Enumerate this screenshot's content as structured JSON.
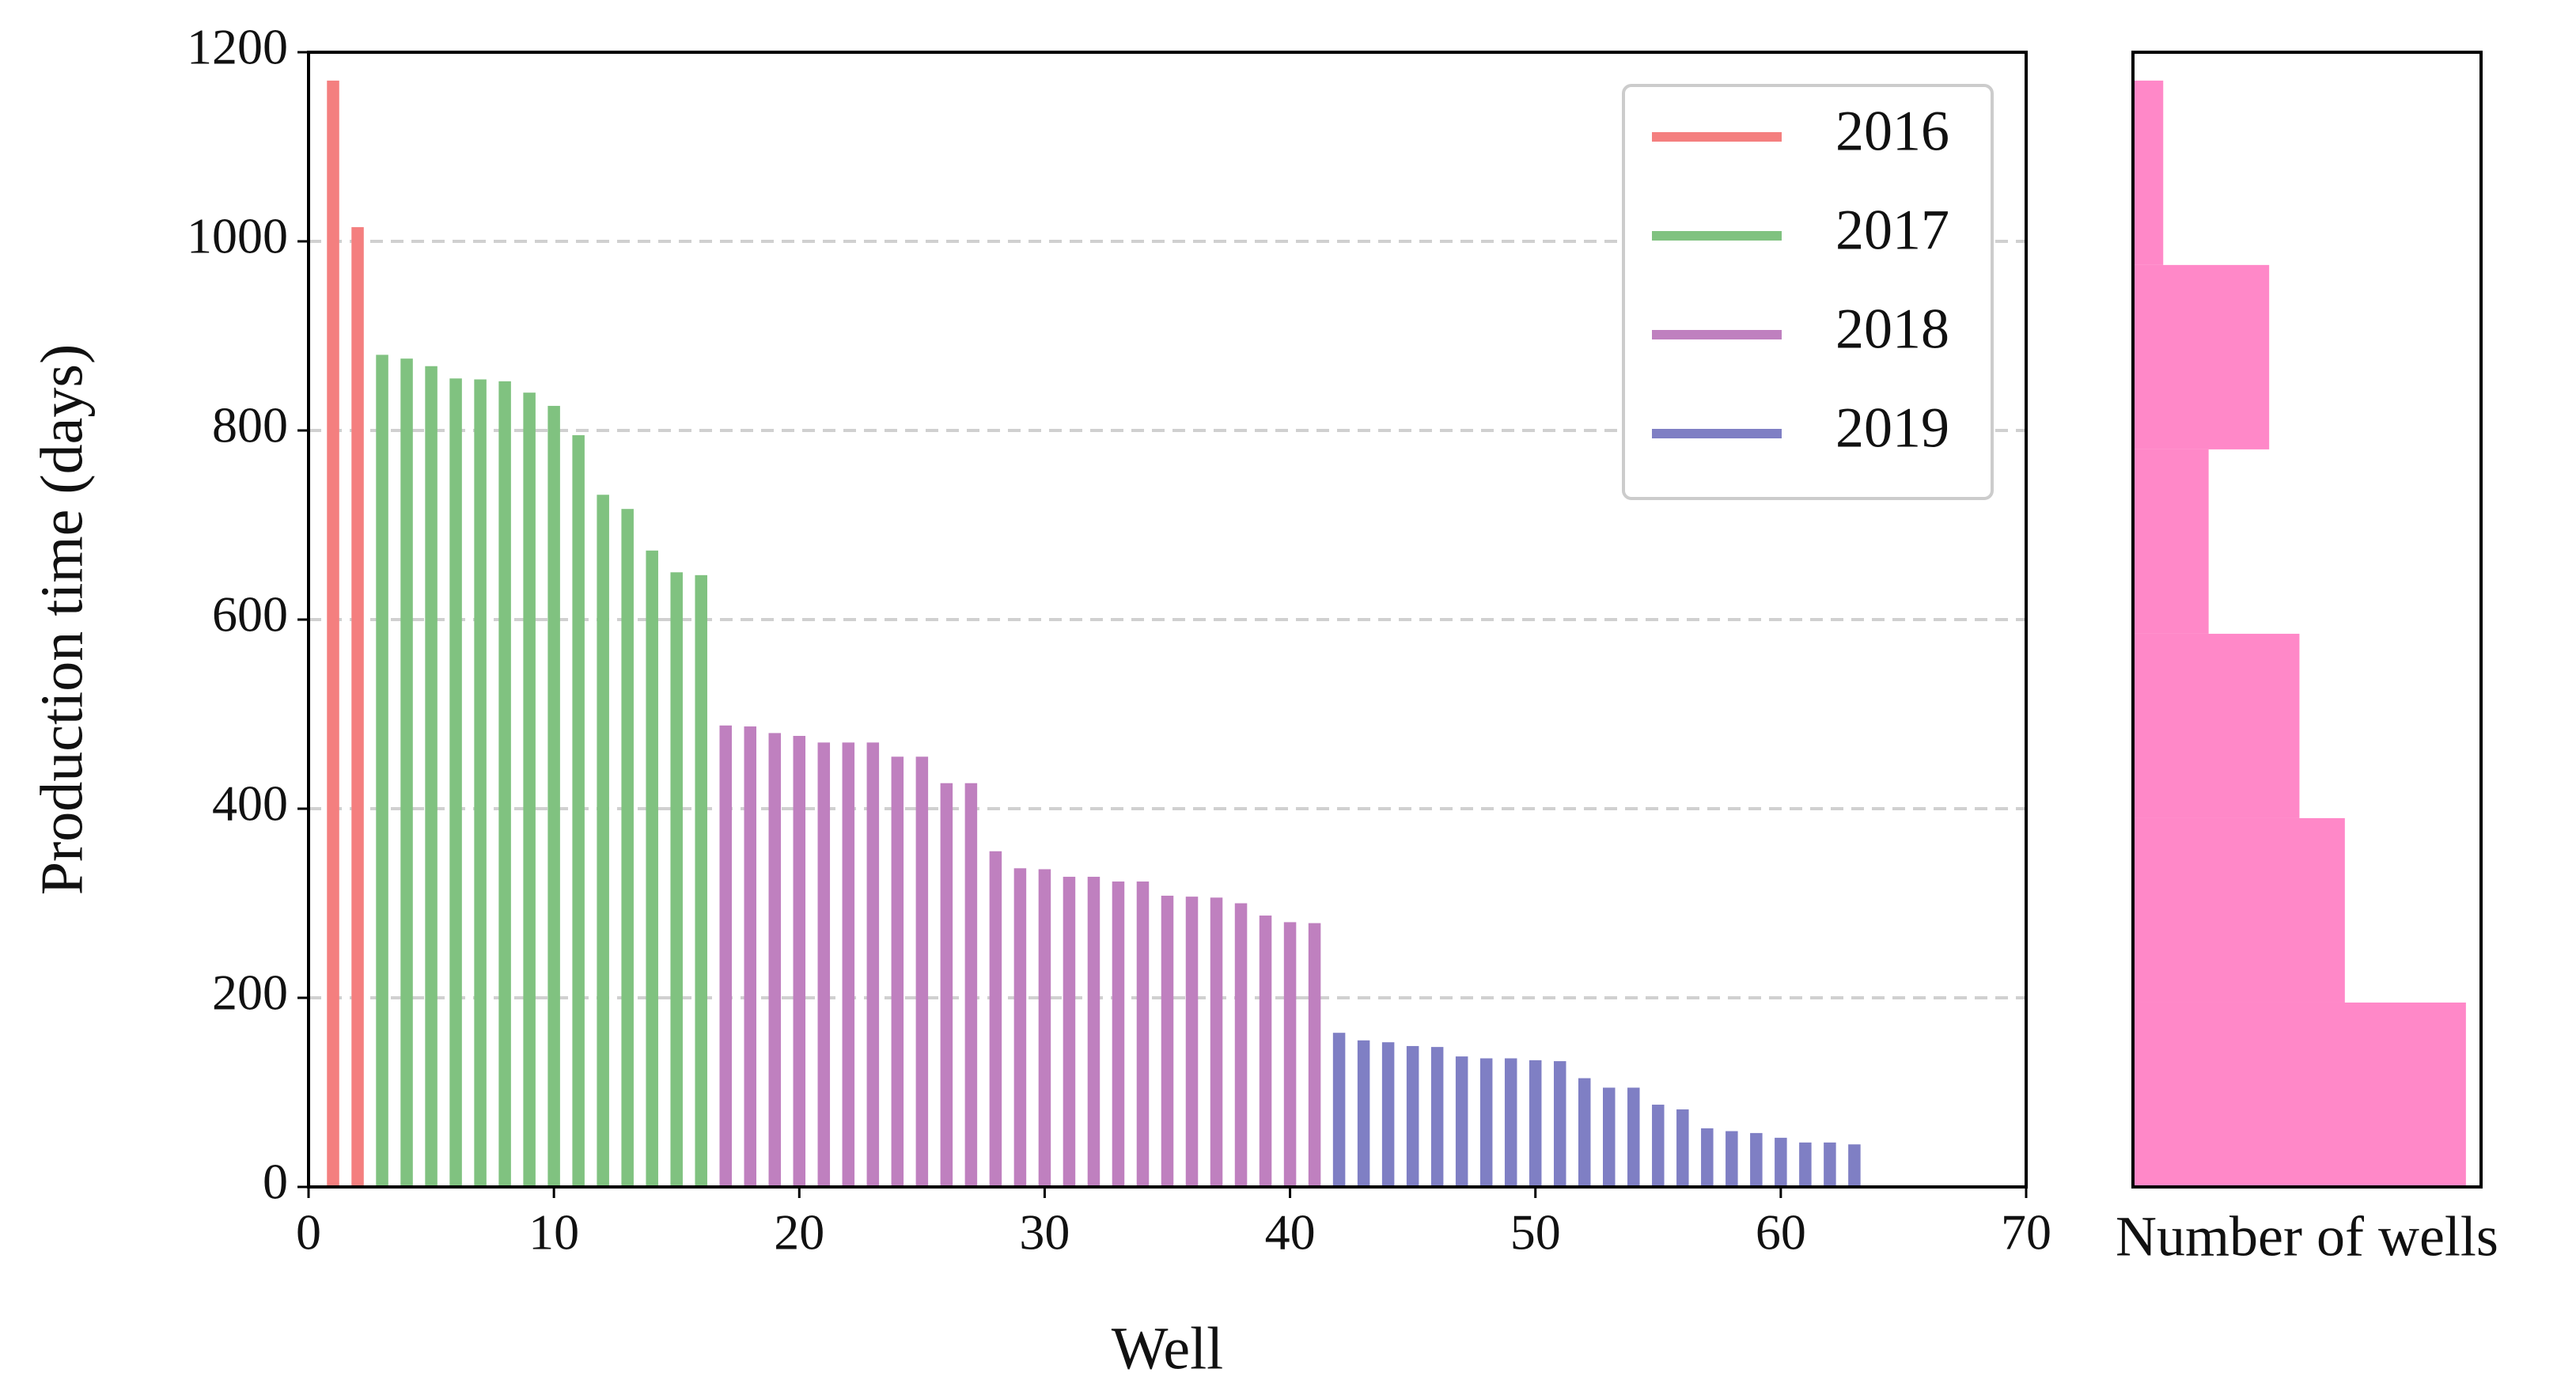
{
  "chart_data": [
    {
      "type": "bar",
      "xlabel": "Well",
      "ylabel": "Production time (days)",
      "xlim": [
        0,
        70
      ],
      "xticks": [
        0,
        10,
        20,
        30,
        40,
        50,
        60,
        70
      ],
      "ylim": [
        0,
        1200
      ],
      "yticks": [
        0,
        200,
        400,
        600,
        800,
        1000,
        1200
      ],
      "grid": true,
      "legend": "upper right",
      "series": [
        {
          "name": "2016",
          "color": "#f47f7f",
          "x": [
            1,
            2
          ],
          "values": [
            1170,
            1015
          ]
        },
        {
          "name": "2017",
          "color": "#80c280",
          "x": [
            3,
            4,
            5,
            6,
            7,
            8,
            9,
            10,
            11,
            12,
            13,
            14,
            15,
            16
          ],
          "values": [
            880,
            876,
            868,
            855,
            854,
            852,
            840,
            826,
            795,
            732,
            717,
            673,
            650,
            647
          ]
        },
        {
          "name": "2018",
          "color": "#bf80bf",
          "x": [
            17,
            18,
            19,
            20,
            21,
            22,
            23,
            24,
            25,
            26,
            27,
            28,
            29,
            30,
            31,
            32,
            33,
            34,
            35,
            36,
            37,
            38,
            39,
            40,
            41
          ],
          "values": [
            488,
            487,
            480,
            477,
            470,
            470,
            470,
            455,
            455,
            427,
            427,
            355,
            337,
            336,
            328,
            328,
            323,
            323,
            308,
            307,
            306,
            300,
            287,
            280,
            279
          ]
        },
        {
          "name": "2019",
          "color": "#7f7fc4",
          "x": [
            42,
            43,
            44,
            45,
            46,
            47,
            48,
            49,
            50,
            51,
            52,
            53,
            54,
            55,
            56,
            57,
            58,
            59,
            60,
            61,
            62,
            63
          ],
          "values": [
            163,
            155,
            153,
            149,
            148,
            138,
            136,
            136,
            134,
            133,
            115,
            105,
            105,
            87,
            82,
            62,
            59,
            57,
            52,
            47,
            47,
            45
          ]
        }
      ]
    },
    {
      "type": "histogram",
      "orientation": "horizontal",
      "xlabel": "Number of wells",
      "color": "#ff88c8",
      "bins": [
        0,
        195,
        390,
        585,
        780,
        975,
        1170
      ],
      "values": [
        22,
        14,
        11,
        5,
        9,
        2
      ],
      "xlim": [
        0,
        23
      ],
      "ylim": [
        0,
        1200
      ]
    }
  ]
}
